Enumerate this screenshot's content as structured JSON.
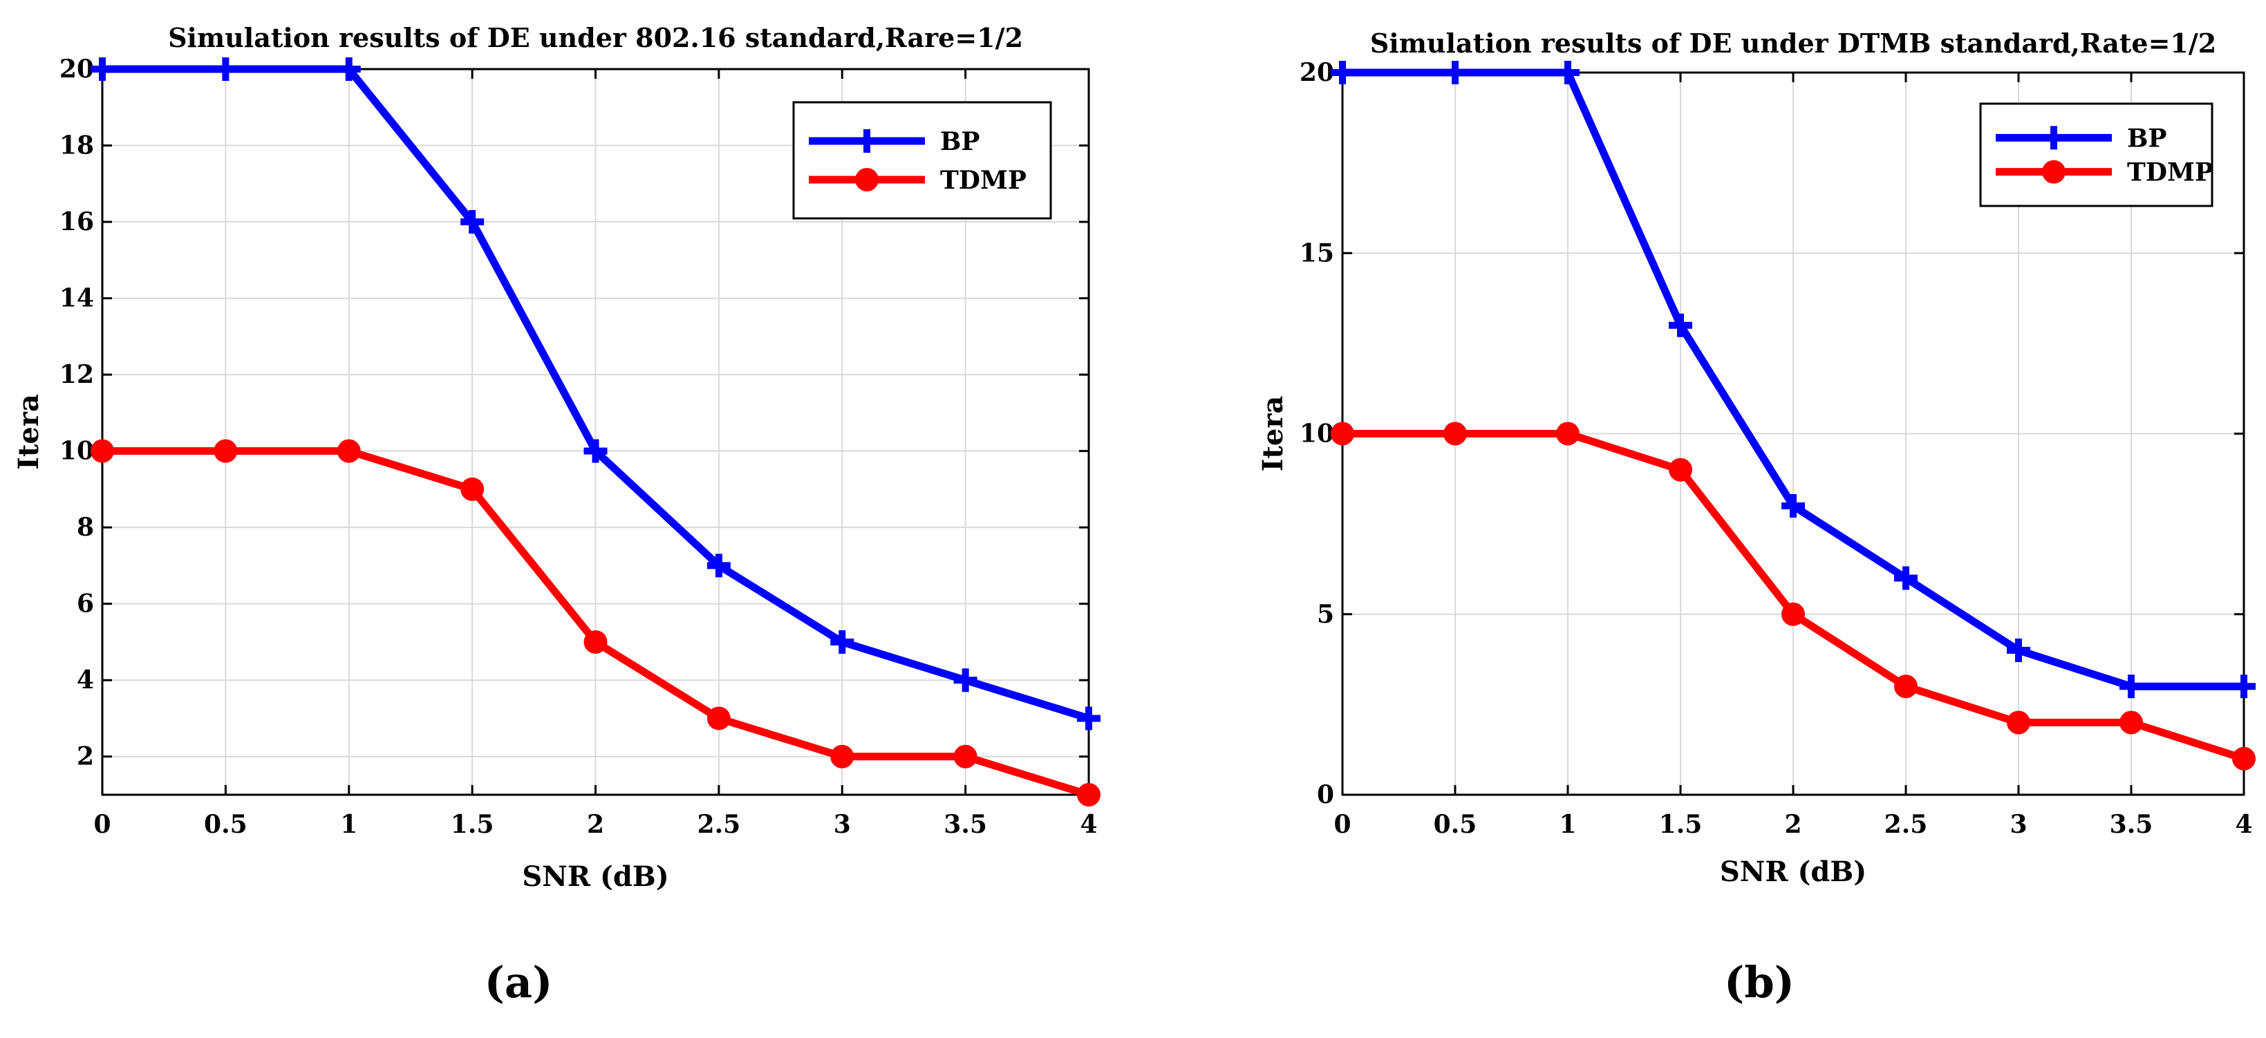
{
  "chart_data": [
    {
      "type": "line",
      "title": "Simulation results of DE under 802.16 standard,Rare=1/2",
      "xlabel": "SNR (dB)",
      "ylabel": "Itera",
      "x": [
        0,
        0.5,
        1,
        1.5,
        2,
        2.5,
        3,
        3.5,
        4
      ],
      "xlim": [
        0,
        4
      ],
      "ylim": [
        1,
        20
      ],
      "xticks": [
        "0",
        "0.5",
        "1",
        "1.5",
        "2",
        "2.5",
        "3",
        "3.5",
        "4"
      ],
      "yticks": [
        2,
        4,
        6,
        8,
        10,
        12,
        14,
        16,
        18,
        20
      ],
      "grid": true,
      "legend_position": "top-right",
      "series": [
        {
          "name": "BP",
          "color": "#0000ff",
          "marker": "plus",
          "values": [
            20,
            20,
            20,
            16,
            10,
            7,
            5,
            4,
            3
          ]
        },
        {
          "name": "TDMP",
          "color": "#ff0000",
          "marker": "circle",
          "values": [
            10,
            10,
            10,
            9,
            5,
            3,
            2,
            2,
            1
          ]
        }
      ],
      "panel_label": "(a)"
    },
    {
      "type": "line",
      "title": "Simulation results of DE under DTMB standard,Rate=1/2",
      "xlabel": "SNR (dB)",
      "ylabel": "Itera",
      "x": [
        0,
        0.5,
        1,
        1.5,
        2,
        2.5,
        3,
        3.5,
        4
      ],
      "xlim": [
        0,
        4
      ],
      "ylim": [
        0,
        20
      ],
      "xticks": [
        "0",
        "0.5",
        "1",
        "1.5",
        "2",
        "2.5",
        "3",
        "3.5",
        "4"
      ],
      "yticks": [
        0,
        5,
        10,
        15,
        20
      ],
      "grid": true,
      "legend_position": "top-right",
      "series": [
        {
          "name": "BP",
          "color": "#0000ff",
          "marker": "plus",
          "values": [
            20,
            20,
            20,
            13,
            8,
            6,
            4,
            3,
            3
          ]
        },
        {
          "name": "TDMP",
          "color": "#ff0000",
          "marker": "circle",
          "values": [
            10,
            10,
            10,
            9,
            5,
            3,
            2,
            2,
            1
          ]
        }
      ],
      "panel_label": "(b)"
    }
  ]
}
